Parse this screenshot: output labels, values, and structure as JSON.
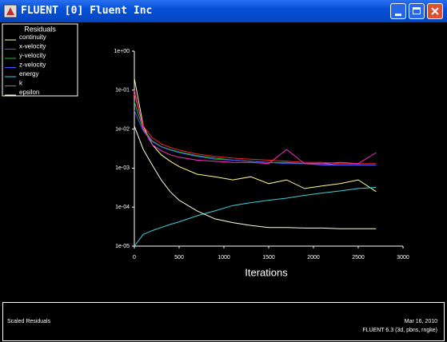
{
  "window": {
    "title": "FLUENT [0] Fluent Inc"
  },
  "chart_data": {
    "type": "line",
    "legend_title": "Residuals",
    "xlabel": "Iterations",
    "yscale": "log",
    "x": [
      0,
      100,
      200,
      300,
      400,
      500,
      700,
      900,
      1100,
      1300,
      1500,
      1700,
      1900,
      2100,
      2300,
      2500,
      2700
    ],
    "series": [
      {
        "name": "continuity",
        "color": "#ffff90",
        "values": [
          0.2,
          0.012,
          0.004,
          0.0022,
          0.0015,
          0.0011,
          0.0007,
          0.0006,
          0.0005,
          0.0006,
          0.0004,
          0.0005,
          0.0003,
          0.00035,
          0.0004,
          0.0005,
          0.00025
        ]
      },
      {
        "name": "x-velocity",
        "color": "#ff2020",
        "values": [
          0.08,
          0.012,
          0.006,
          0.0042,
          0.0034,
          0.0029,
          0.0023,
          0.002,
          0.0018,
          0.0017,
          0.0016,
          0.0015,
          0.0014,
          0.0014,
          0.0013,
          0.0013,
          0.0013
        ]
      },
      {
        "name": "y-velocity",
        "color": "#20c020",
        "values": [
          0.05,
          0.01,
          0.005,
          0.0036,
          0.003,
          0.0026,
          0.0021,
          0.0018,
          0.0016,
          0.0015,
          0.0014,
          0.0014,
          0.0013,
          0.0013,
          0.0012,
          0.0012,
          0.0012
        ]
      },
      {
        "name": "z-velocity",
        "color": "#4060ff",
        "values": [
          0.03,
          0.009,
          0.0048,
          0.0035,
          0.0029,
          0.0025,
          0.002,
          0.0017,
          0.0016,
          0.0015,
          0.0014,
          0.0013,
          0.0013,
          0.0012,
          0.0012,
          0.0012,
          0.0012
        ]
      },
      {
        "name": "energy",
        "color": "#40d0e0",
        "values": [
          1e-05,
          2e-05,
          2.5e-05,
          3e-05,
          3.6e-05,
          4.2e-05,
          6e-05,
          8e-05,
          0.00011,
          0.00013,
          0.00015,
          0.00017,
          0.0002,
          0.00023,
          0.00026,
          0.0003,
          0.00032
        ]
      },
      {
        "name": "k",
        "color": "#ff30c0",
        "values": [
          0.1,
          0.01,
          0.004,
          0.0028,
          0.0022,
          0.0019,
          0.0016,
          0.0015,
          0.0014,
          0.0014,
          0.0013,
          0.003,
          0.0013,
          0.0013,
          0.0014,
          0.0013,
          0.0025
        ]
      },
      {
        "name": "epsilon",
        "color": "#ffffe0",
        "values": [
          0.012,
          0.003,
          0.0012,
          0.0005,
          0.00025,
          0.00015,
          8e-05,
          5e-05,
          4e-05,
          3.4e-05,
          3e-05,
          3e-05,
          2.9e-05,
          2.9e-05,
          2.8e-05,
          2.8e-05,
          2.8e-05
        ]
      }
    ],
    "xlim": [
      0,
      3000
    ],
    "xticks": [
      0,
      500,
      1000,
      1500,
      2000,
      2500,
      3000
    ],
    "ylim": [
      1e-05,
      1
    ],
    "yticks": [
      {
        "value": 1,
        "label": "1e+00"
      },
      {
        "value": 0.1,
        "label": "1e-01"
      },
      {
        "value": 0.01,
        "label": "1e-02"
      },
      {
        "value": 0.001,
        "label": "1e-03"
      },
      {
        "value": 0.0001,
        "label": "1e-04"
      },
      {
        "value": 1e-05,
        "label": "1e-05"
      }
    ]
  },
  "footer": {
    "left": "Scaled Residuals",
    "date": "Mar 16, 2010",
    "version": "FLUENT 6.3 (3d, pbns, rngke)"
  }
}
